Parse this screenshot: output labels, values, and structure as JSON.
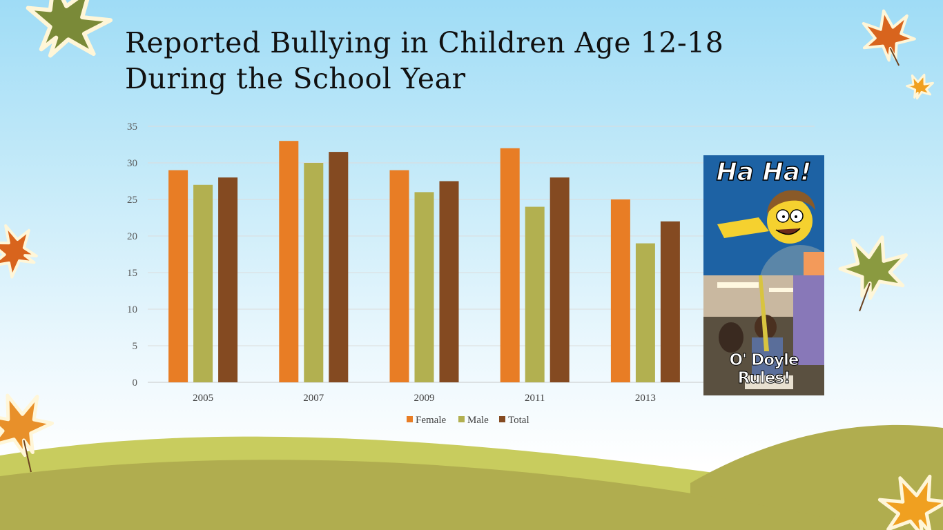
{
  "slide": {
    "title": "Reported Bullying in Children Age 12-18 During the School Year"
  },
  "images": {
    "meme_top_caption": "Ha Ha!",
    "meme_bottom_caption": "O' Doyle Rules!"
  },
  "colors": {
    "female": "#e87d25",
    "male": "#b2b050",
    "total": "#844a21",
    "grass_light": "#c8cc5e",
    "grass_dark": "#b0ad4f"
  },
  "chart_data": {
    "type": "bar",
    "title": "",
    "xlabel": "",
    "ylabel": "",
    "categories": [
      "2005",
      "2007",
      "2009",
      "2011",
      "2013"
    ],
    "series": [
      {
        "name": "Female",
        "values": [
          29,
          33,
          29,
          32,
          25
        ]
      },
      {
        "name": "Male",
        "values": [
          27,
          30,
          26,
          24,
          19
        ]
      },
      {
        "name": "Total",
        "values": [
          28,
          31.5,
          27.5,
          28,
          22
        ]
      }
    ],
    "ylim": [
      0,
      35
    ],
    "yticks": [
      "0",
      "5",
      "10",
      "15",
      "20",
      "25",
      "30",
      "35"
    ],
    "grid": true,
    "legend": "bottom"
  }
}
